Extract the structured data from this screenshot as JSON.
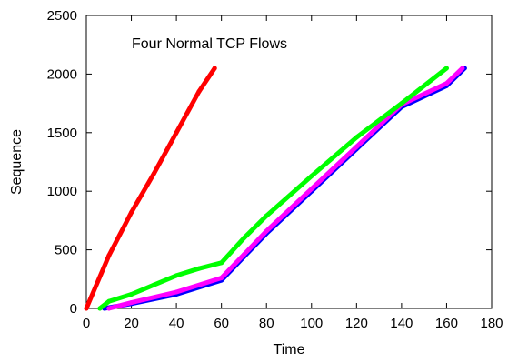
{
  "chart_data": {
    "type": "line",
    "title": "",
    "annotation": "Four Normal TCP Flows",
    "xlabel": "Time",
    "ylabel": "Sequence",
    "xlim": [
      0,
      180
    ],
    "ylim": [
      0,
      2500
    ],
    "xticks": [
      0,
      20,
      40,
      60,
      80,
      100,
      120,
      140,
      160,
      180
    ],
    "yticks": [
      0,
      500,
      1000,
      1500,
      2000,
      2500
    ],
    "grid": false,
    "legend": "none",
    "series": [
      {
        "color": "#0000ff",
        "x": [
          8,
          20,
          40,
          60,
          70,
          80,
          100,
          120,
          140,
          160,
          168
        ],
        "y": [
          0,
          40,
          120,
          240,
          440,
          640,
          1000,
          1360,
          1720,
          1900,
          2050
        ]
      },
      {
        "color": "#ff00ff",
        "x": [
          10,
          20,
          40,
          60,
          70,
          80,
          100,
          120,
          140,
          160,
          167
        ],
        "y": [
          0,
          50,
          140,
          260,
          460,
          660,
          1020,
          1380,
          1740,
          1920,
          2050
        ]
      },
      {
        "color": "#00ff00",
        "x": [
          6,
          10,
          20,
          30,
          40,
          50,
          60,
          70,
          80,
          100,
          120,
          140,
          160
        ],
        "y": [
          0,
          60,
          120,
          200,
          280,
          340,
          390,
          600,
          790,
          1130,
          1460,
          1750,
          2050
        ]
      },
      {
        "color": "#ff0000",
        "x": [
          0,
          10,
          20,
          30,
          40,
          50,
          57
        ],
        "y": [
          0,
          450,
          820,
          1150,
          1500,
          1850,
          2050
        ]
      }
    ]
  }
}
